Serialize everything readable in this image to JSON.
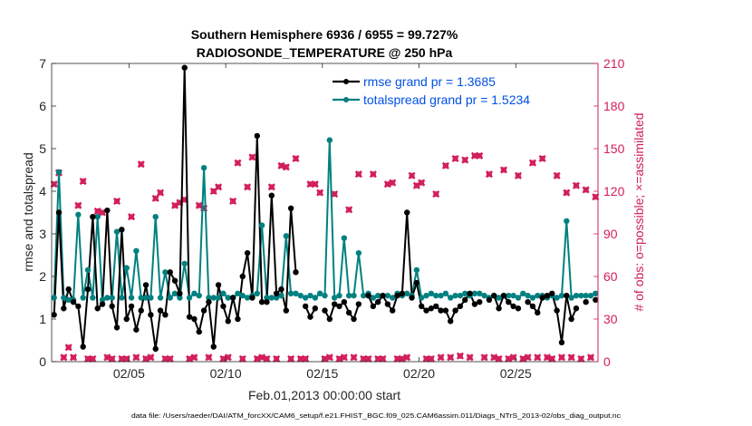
{
  "chart_data": {
    "type": "line",
    "title_line1": "Southern Hemisphere 6936 / 6955 = 99.727%",
    "title_line2": "RADIOSONDE_TEMPERATURE @ 250 hPa",
    "xlabel": "Feb.01,2013 00:00:00 start",
    "ylabel_left": "rmse and totalspread",
    "ylabel_right": "# of obs: o=possible; ×=assimilated",
    "footer": "data file: /Users/raeder/DAI/ATM_forcXX/CAM6_setup/f.e21.FHIST_BGC.f09_025.CAM6assim.011/Diags_NTrS_2013-02/obs_diag_output.nc",
    "xlim": [
      1.0,
      29.25
    ],
    "ylim_left": [
      0,
      7
    ],
    "ylim_right": [
      0,
      210
    ],
    "x_ticks": [
      5,
      10,
      15,
      20,
      25
    ],
    "x_tick_labels": [
      "02/05",
      "02/10",
      "02/15",
      "02/20",
      "02/25"
    ],
    "y_ticks_left": [
      0,
      1,
      2,
      3,
      4,
      5,
      6,
      7
    ],
    "y_tick_labels_left": [
      "0",
      "1",
      "2",
      "3",
      "4",
      "5",
      "6",
      "7"
    ],
    "y_ticks_right": [
      0,
      30,
      60,
      90,
      120,
      150,
      180,
      210
    ],
    "y_tick_labels_right": [
      "0",
      "30",
      "60",
      "90",
      "120",
      "150",
      "180",
      "210"
    ],
    "legend": [
      "rmse grand pr = 1.3685",
      "totalspread grand pr = 1.5234"
    ],
    "colors": {
      "rmse": "#000000",
      "spread": "#008080",
      "obs": "#d21e5a",
      "legend_text": "#0050e6",
      "axes": "#262626"
    },
    "x": [
      1.125,
      1.375,
      1.625,
      1.875,
      2.125,
      2.375,
      2.625,
      2.875,
      3.125,
      3.375,
      3.625,
      3.875,
      4.125,
      4.375,
      4.625,
      4.875,
      5.125,
      5.375,
      5.625,
      5.875,
      6.125,
      6.375,
      6.625,
      6.875,
      7.125,
      7.375,
      7.625,
      7.875,
      8.125,
      8.375,
      8.625,
      8.875,
      9.125,
      9.375,
      9.625,
      9.875,
      10.125,
      10.375,
      10.625,
      10.875,
      11.125,
      11.375,
      11.625,
      11.875,
      12.125,
      12.375,
      12.625,
      12.875,
      13.125,
      13.375,
      13.625,
      13.875,
      14.125,
      14.375,
      14.625,
      14.875,
      15.125,
      15.375,
      15.625,
      15.875,
      16.125,
      16.375,
      16.625,
      16.875,
      17.125,
      17.375,
      17.625,
      17.875,
      18.125,
      18.375,
      18.625,
      18.875,
      19.125,
      19.375,
      19.625,
      19.875,
      20.125,
      20.375,
      20.625,
      20.875,
      21.125,
      21.375,
      21.625,
      21.875,
      22.125,
      22.375,
      22.625,
      22.875,
      23.125,
      23.375,
      23.625,
      23.875,
      24.125,
      24.375,
      24.625,
      24.875,
      25.125,
      25.375,
      25.625,
      25.875,
      26.125,
      26.375,
      26.625,
      26.875,
      27.125,
      27.375,
      27.625,
      27.875,
      28.125,
      28.375,
      28.625,
      28.875,
      29.125
    ],
    "series": [
      {
        "name": "rmse",
        "values": [
          1.1,
          3.5,
          1.25,
          1.7,
          1.4,
          1.3,
          0.35,
          1.7,
          3.4,
          1.25,
          1.35,
          3.55,
          1.3,
          0.8,
          3.1,
          1.0,
          1.3,
          0.75,
          1.2,
          1.8,
          1.1,
          0.3,
          1.2,
          1.1,
          2.1,
          1.9,
          1.6,
          6.9,
          1.05,
          1.0,
          0.7,
          1.2,
          1.4,
          0.35,
          1.8,
          1.3,
          0.95,
          1.5,
          1.0,
          2.0,
          2.55,
          1.5,
          5.3,
          1.4,
          1.4,
          3.9,
          1.6,
          1.7,
          1.2,
          3.6,
          2.1,
          null,
          1.3,
          1.05,
          1.25,
          null,
          1.2,
          1.0,
          1.35,
          1.3,
          1.4,
          1.15,
          1.0,
          1.35,
          null,
          1.55,
          1.3,
          1.4,
          1.55,
          1.35,
          1.2,
          1.55,
          1.6,
          3.5,
          1.5,
          1.85,
          1.3,
          1.2,
          1.25,
          1.3,
          1.2,
          1.2,
          0.95,
          1.2,
          1.3,
          1.45,
          1.6,
          1.35,
          1.4,
          null,
          1.45,
          1.55,
          1.25,
          1.55,
          1.4,
          1.3,
          1.25,
          null,
          1.4,
          1.3,
          1.15,
          1.5,
          1.55,
          1.6,
          1.2,
          0.45,
          1.55,
          1.0,
          1.25,
          null,
          1.4,
          null,
          1.45
        ]
      },
      {
        "name": "totalspread",
        "values": [
          1.5,
          4.45,
          1.5,
          1.45,
          1.45,
          3.45,
          1.5,
          2.15,
          1.5,
          3.4,
          1.45,
          1.5,
          1.5,
          3.05,
          1.5,
          2.2,
          1.5,
          2.6,
          1.5,
          1.5,
          1.5,
          3.4,
          1.5,
          2.1,
          1.5,
          1.6,
          1.5,
          2.3,
          1.5,
          1.6,
          1.55,
          4.55,
          1.5,
          1.5,
          1.5,
          1.6,
          1.5,
          1.5,
          1.6,
          1.55,
          1.5,
          1.55,
          1.6,
          3.2,
          1.5,
          1.5,
          1.5,
          1.55,
          2.95,
          1.6,
          1.6,
          1.55,
          1.5,
          1.55,
          1.5,
          1.6,
          1.55,
          5.2,
          1.5,
          1.55,
          2.9,
          1.55,
          1.55,
          2.55,
          1.55,
          1.6,
          1.5,
          1.55,
          1.55,
          1.55,
          1.5,
          1.6,
          1.55,
          1.6,
          1.55,
          2.15,
          1.5,
          1.55,
          1.6,
          1.55,
          1.55,
          1.6,
          1.5,
          1.55,
          1.55,
          1.6,
          1.55,
          1.6,
          1.6,
          1.55,
          1.5,
          1.55,
          1.5,
          1.55,
          1.55,
          1.55,
          1.5,
          1.6,
          1.55,
          1.5,
          1.55,
          1.55,
          1.5,
          1.55,
          1.5,
          1.55,
          3.3,
          1.5,
          1.55,
          1.55,
          1.55,
          1.55,
          1.6
        ]
      },
      {
        "name": "obs_possible",
        "values": [
          125,
          133,
          3,
          10,
          3,
          110,
          127,
          2,
          2,
          106,
          105,
          3,
          2,
          113,
          2,
          2,
          102,
          3,
          139,
          2,
          3,
          115,
          119,
          2,
          2,
          110,
          112,
          114,
          2,
          3,
          110,
          108,
          3,
          120,
          123,
          2,
          3,
          113,
          140,
          2,
          123,
          144,
          2,
          3,
          2,
          123,
          2,
          138,
          137,
          2,
          143,
          2,
          2,
          125,
          125,
          119,
          2,
          3,
          118,
          2,
          3,
          107,
          3,
          132,
          2,
          2,
          132,
          2,
          2,
          125,
          126,
          2,
          2,
          3,
          131,
          124,
          126,
          2,
          2,
          118,
          3,
          138,
          3,
          143,
          4,
          142,
          3,
          145,
          145,
          3,
          132,
          3,
          2,
          135,
          2,
          3,
          131,
          2,
          3,
          140,
          3,
          143,
          3,
          2,
          131,
          3,
          119,
          3,
          124,
          2,
          121,
          3,
          116
        ]
      },
      {
        "name": "obs_assimilated",
        "values": [
          125,
          133,
          3,
          10,
          3,
          110,
          127,
          2,
          2,
          106,
          105,
          3,
          2,
          113,
          2,
          2,
          102,
          3,
          139,
          2,
          3,
          115,
          119,
          2,
          2,
          110,
          112,
          114,
          2,
          3,
          110,
          108,
          3,
          120,
          123,
          2,
          3,
          113,
          140,
          2,
          123,
          144,
          2,
          3,
          2,
          123,
          2,
          138,
          137,
          2,
          143,
          2,
          2,
          125,
          125,
          119,
          2,
          3,
          118,
          2,
          3,
          107,
          3,
          132,
          2,
          2,
          132,
          2,
          2,
          125,
          126,
          2,
          2,
          3,
          131,
          124,
          126,
          2,
          2,
          118,
          3,
          138,
          3,
          143,
          4,
          142,
          3,
          145,
          145,
          3,
          132,
          3,
          2,
          135,
          2,
          3,
          131,
          2,
          3,
          140,
          3,
          143,
          3,
          2,
          131,
          3,
          119,
          3,
          124,
          2,
          121,
          3,
          116
        ]
      }
    ]
  }
}
